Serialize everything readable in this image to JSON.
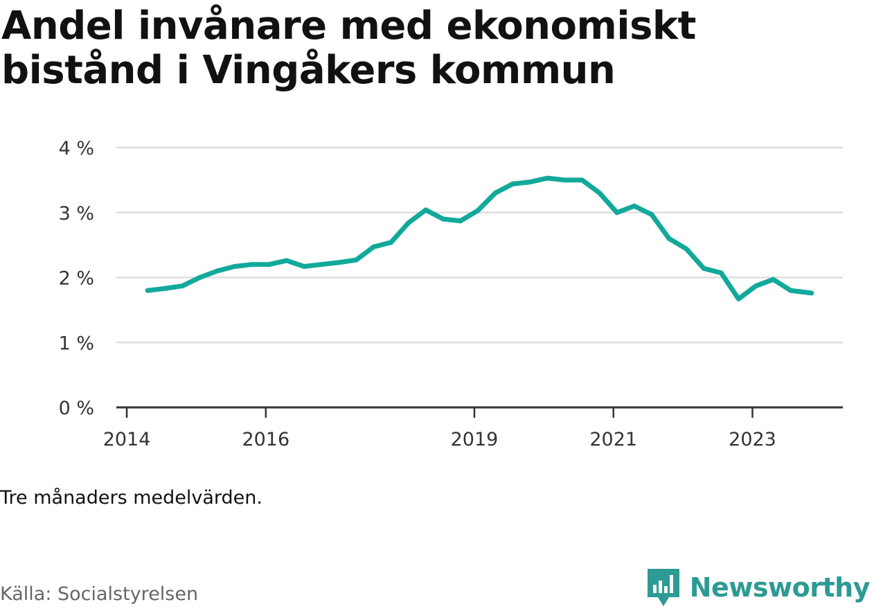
{
  "title": "Andel invånare med ekonomiskt bistånd i Vingåkers kommun",
  "note": "Tre månaders medelvärden.",
  "source": "Källa: Socialstyrelsen",
  "brand": {
    "name": "Newsworthy",
    "icon": "newsworthy-logo-icon"
  },
  "colors": {
    "line": "#12a99b",
    "grid": "#dddddd",
    "axis": "#333333",
    "brand": "#2d9a94"
  },
  "chart_data": {
    "type": "line",
    "title": "Andel invånare med ekonomiskt bistånd i Vingåkers kommun",
    "xlabel": "",
    "ylabel": "",
    "ylim": [
      0,
      4
    ],
    "xlim": [
      2013.85,
      2024.3
    ],
    "y_ticks": [
      0,
      1,
      2,
      3,
      4
    ],
    "y_tick_labels": [
      "0 %",
      "1 %",
      "2 %",
      "3 %",
      "4 %"
    ],
    "x_ticks": [
      2014,
      2016,
      2019,
      2021,
      2023
    ],
    "x_tick_labels": [
      "2014",
      "2016",
      "2019",
      "2021",
      "2023"
    ],
    "grid": true,
    "series": [
      {
        "name": "",
        "x": [
          2014.3,
          2014.55,
          2014.8,
          2015.05,
          2015.3,
          2015.55,
          2015.8,
          2016.05,
          2016.3,
          2016.55,
          2016.8,
          2017.05,
          2017.3,
          2017.55,
          2017.8,
          2018.05,
          2018.3,
          2018.55,
          2018.8,
          2019.05,
          2019.3,
          2019.55,
          2019.8,
          2020.05,
          2020.3,
          2020.55,
          2020.8,
          2021.05,
          2021.3,
          2021.55,
          2021.8,
          2022.05,
          2022.3,
          2022.55,
          2022.8,
          2023.05,
          2023.3,
          2023.55,
          2023.85
        ],
        "y": [
          1.8,
          1.83,
          1.87,
          2.0,
          2.1,
          2.17,
          2.2,
          2.2,
          2.26,
          2.17,
          2.2,
          2.23,
          2.27,
          2.47,
          2.54,
          2.84,
          3.04,
          2.9,
          2.87,
          3.03,
          3.3,
          3.44,
          3.47,
          3.53,
          3.5,
          3.5,
          3.3,
          3.0,
          3.1,
          2.97,
          2.6,
          2.44,
          2.14,
          2.07,
          1.67,
          1.87,
          1.97,
          1.8,
          1.76
        ]
      }
    ]
  }
}
